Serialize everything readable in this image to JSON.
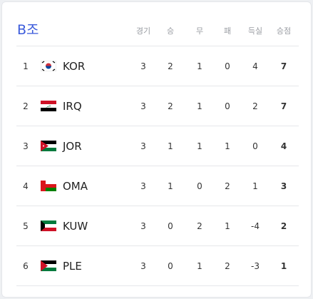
{
  "title": "B조",
  "table": {
    "columns": [
      "경기",
      "승",
      "무",
      "패",
      "득실",
      "승점"
    ],
    "rows": [
      {
        "rank": 1,
        "team": "KOR",
        "stats": [
          3,
          2,
          1,
          0,
          4,
          7
        ]
      },
      {
        "rank": 2,
        "team": "IRQ",
        "stats": [
          3,
          2,
          1,
          0,
          2,
          7
        ]
      },
      {
        "rank": 3,
        "team": "JOR",
        "stats": [
          3,
          1,
          1,
          1,
          0,
          4
        ]
      },
      {
        "rank": 4,
        "team": "OMA",
        "stats": [
          3,
          1,
          0,
          2,
          1,
          3
        ]
      },
      {
        "rank": 5,
        "team": "KUW",
        "stats": [
          3,
          0,
          2,
          1,
          -4,
          2
        ]
      },
      {
        "rank": 6,
        "team": "PLE",
        "stats": [
          3,
          0,
          1,
          2,
          -3,
          1
        ]
      }
    ]
  }
}
